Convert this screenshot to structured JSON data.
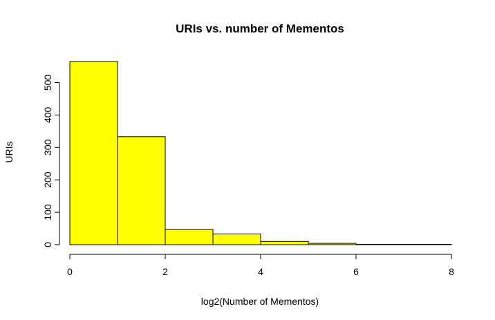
{
  "chart_data": {
    "type": "bar",
    "title": "URIs vs. number of Mementos",
    "xlabel": "log2(Number of Mementos)",
    "ylabel": "URIs",
    "bins": [
      {
        "x0": 0,
        "x1": 1,
        "count": 565
      },
      {
        "x0": 1,
        "x1": 2,
        "count": 333
      },
      {
        "x0": 2,
        "x1": 3,
        "count": 47
      },
      {
        "x0": 3,
        "x1": 4,
        "count": 33
      },
      {
        "x0": 4,
        "x1": 5,
        "count": 10
      },
      {
        "x0": 5,
        "x1": 6,
        "count": 4
      },
      {
        "x0": 6,
        "x1": 7,
        "count": 1
      },
      {
        "x0": 7,
        "x1": 8,
        "count": 1
      }
    ],
    "xlim": [
      0,
      8
    ],
    "ylim": [
      0,
      565
    ],
    "xticks": [
      0,
      2,
      4,
      6,
      8
    ],
    "yticks": [
      0,
      100,
      200,
      300,
      400,
      500
    ],
    "bar_color": "#ffff00",
    "grid": false,
    "legend": "none"
  }
}
